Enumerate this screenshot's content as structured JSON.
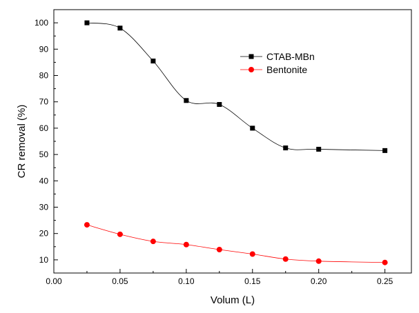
{
  "chart_data": {
    "type": "line",
    "title": "",
    "xlabel": "Volum (L)",
    "ylabel": "CR removal (%)",
    "xlim": [
      0.0,
      0.27
    ],
    "ylim": [
      5,
      105
    ],
    "x_ticks": [
      "0.00",
      "0.05",
      "0.10",
      "0.15",
      "0.20",
      "0.25"
    ],
    "y_ticks": [
      "10",
      "20",
      "30",
      "40",
      "50",
      "60",
      "70",
      "80",
      "90",
      "100"
    ],
    "grid": false,
    "legend_position": "top-right",
    "x": [
      0.025,
      0.05,
      0.075,
      0.1,
      0.125,
      0.15,
      0.175,
      0.2,
      0.25
    ],
    "series": [
      {
        "name": "CTAB-MBn",
        "marker": "square",
        "color": "#000000",
        "values": [
          100,
          98,
          85.5,
          70.5,
          69,
          60,
          52.5,
          52,
          51.5
        ]
      },
      {
        "name": "Bentonite",
        "marker": "circle",
        "color": "#ff0000",
        "values": [
          23.3,
          19.7,
          17,
          15.8,
          13.9,
          12.2,
          10.3,
          9.5,
          9
        ]
      }
    ]
  }
}
